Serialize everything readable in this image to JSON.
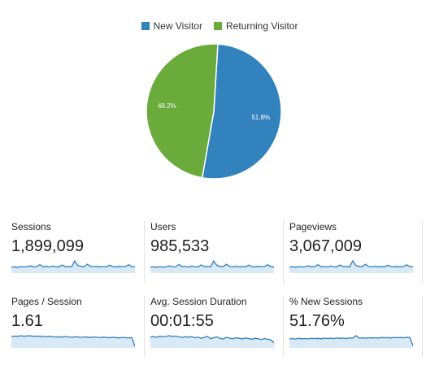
{
  "legend": [
    {
      "label": "New Visitor",
      "color": "#3182bd"
    },
    {
      "label": "Returning Visitor",
      "color": "#6aab3c"
    }
  ],
  "chart_data": {
    "type": "pie",
    "slices": [
      {
        "name": "New Visitor",
        "value": 51.8,
        "label": "51.8%",
        "color": "#3182bd"
      },
      {
        "name": "Returning Visitor",
        "value": 48.2,
        "label": "48.2%",
        "color": "#6aab3c"
      }
    ]
  },
  "metrics": [
    {
      "label": "Sessions",
      "value": "1,899,099",
      "spark": [
        5,
        5.3,
        4.8,
        5.6,
        5.1,
        5.4,
        6.2,
        5.2,
        5.5,
        7.4,
        5.3,
        5.8,
        5.1,
        6,
        5.4,
        5.2,
        7,
        5.5,
        5.6,
        5.3,
        11,
        6.5,
        5.7,
        5.4,
        7.8,
        5.6,
        5.4,
        5.8,
        5.3,
        5.6,
        5.2,
        6.9,
        5.5,
        5.3,
        5.7,
        5.4,
        5.6,
        7.2,
        5.5,
        5.3
      ]
    },
    {
      "label": "Users",
      "value": "985,533",
      "spark": [
        4.5,
        4.8,
        4.4,
        5,
        4.6,
        4.9,
        5.7,
        4.7,
        5,
        6.8,
        4.9,
        5.3,
        4.6,
        5.5,
        4.9,
        4.7,
        6.4,
        5,
        5.1,
        4.8,
        10,
        6,
        5.2,
        4.9,
        7.1,
        5.1,
        4.9,
        5.3,
        4.8,
        5.1,
        4.7,
        6.3,
        5,
        4.8,
        5.2,
        4.9,
        5.1,
        6.6,
        5,
        4.8
      ]
    },
    {
      "label": "Pageviews",
      "value": "3,067,009",
      "spark": [
        5.5,
        5.8,
        5.2,
        6.1,
        5.6,
        5.9,
        6.8,
        5.7,
        6,
        8,
        5.8,
        6.3,
        5.6,
        6.5,
        5.9,
        5.7,
        7.6,
        6,
        6.1,
        5.8,
        12,
        7.1,
        6.2,
        5.9,
        8.5,
        6.1,
        5.9,
        6.3,
        5.8,
        6.1,
        5.7,
        7.5,
        6,
        5.8,
        6.2,
        5.9,
        6.1,
        7.8,
        6,
        5.8
      ]
    },
    {
      "label": "Pages / Session",
      "value": "1.61",
      "spark": [
        8,
        8.3,
        8.1,
        8.6,
        8.2,
        8.4,
        8.5,
        8.1,
        8.3,
        8.2,
        8,
        7.8,
        8.1,
        7.9,
        7.6,
        7.8,
        7.5,
        7.9,
        7.7,
        7.4,
        7.8,
        7.6,
        7.3,
        7.7,
        7.5,
        7.2,
        7.6,
        7.4,
        7.1,
        7.5,
        7.3,
        7,
        7.4,
        7.2,
        6.9,
        7.3,
        7.1,
        6.8,
        7.2,
        0.5
      ]
    },
    {
      "label": "Avg. Session Duration",
      "value": "00:01:55",
      "spark": [
        7,
        7.3,
        6.9,
        7.6,
        7.2,
        7.5,
        8,
        7.4,
        7.7,
        7.2,
        6.8,
        7.3,
        6.9,
        7.4,
        6.5,
        7,
        6.2,
        6.8,
        7.5,
        5.8,
        6.6,
        7.2,
        6.1,
        5.6,
        6.9,
        6.3,
        5.9,
        6.6,
        6.2,
        5.7,
        6.4,
        6,
        5.5,
        6.2,
        5.8,
        5.3,
        6,
        5.6,
        5.1,
        3
      ]
    },
    {
      "label": "% New Sessions",
      "value": "51.76%",
      "spark": [
        6,
        6.3,
        6,
        6.5,
        6.2,
        6.4,
        6.1,
        6.6,
        6.3,
        6.5,
        6.2,
        6.7,
        6.4,
        6.6,
        6.3,
        6.8,
        6.5,
        6.7,
        6.4,
        6.9,
        6.6,
        8.5,
        6.7,
        6.9,
        6.6,
        7,
        6.8,
        7,
        6.7,
        7.1,
        6.9,
        7.1,
        6.8,
        7.2,
        7,
        7.2,
        6.9,
        7.3,
        7.1,
        1
      ]
    }
  ]
}
